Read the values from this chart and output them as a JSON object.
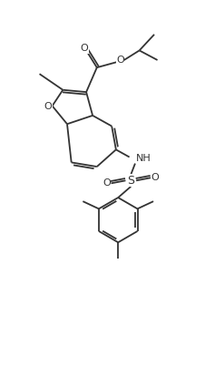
{
  "background_color": "#ffffff",
  "line_color": "#333333",
  "line_width": 1.3,
  "figsize": [
    2.37,
    4.13
  ],
  "dpi": 100,
  "xlim": [
    0,
    10
  ],
  "ylim": [
    0,
    17
  ]
}
